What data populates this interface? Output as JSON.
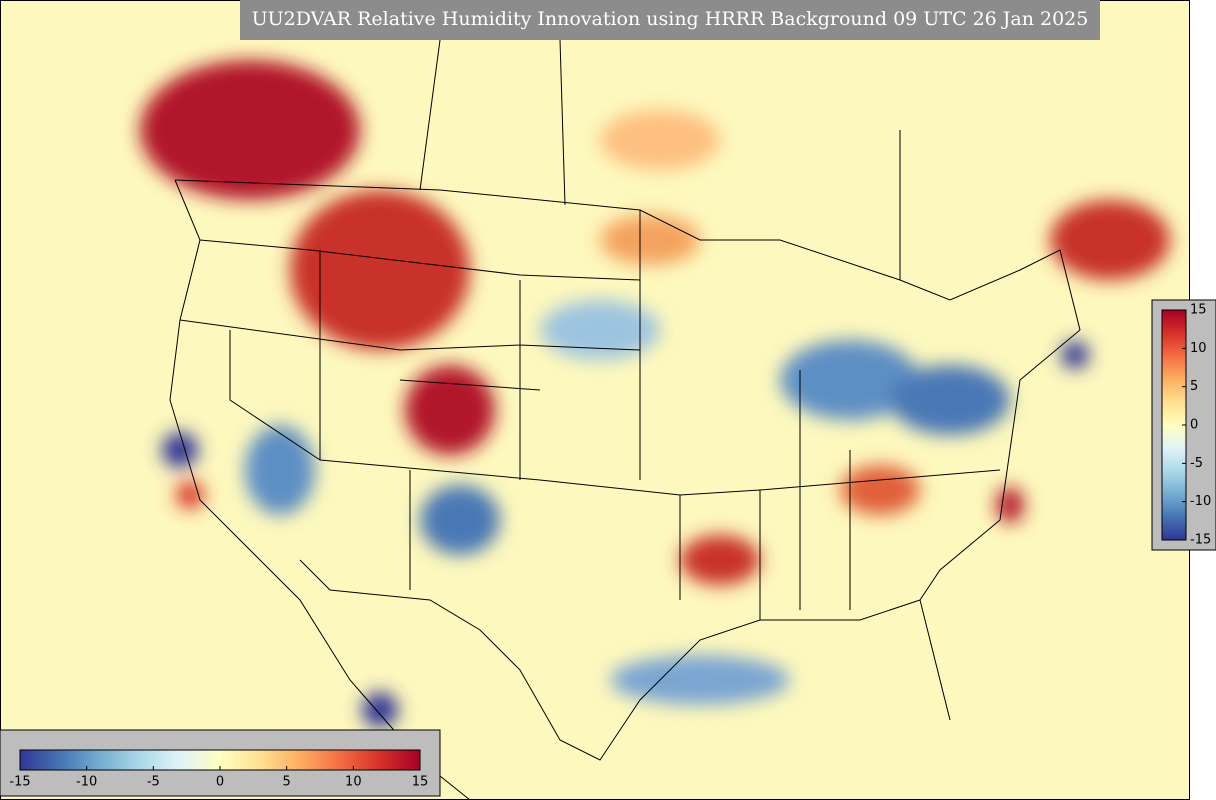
{
  "title": "UU2DVAR Relative Humidity Innovation using HRRR Background 09 UTC 26 Jan 2025",
  "colorbar": {
    "range": [
      -15,
      15
    ],
    "ticks": [
      -15,
      -10,
      -5,
      0,
      5,
      10,
      15
    ],
    "colormap": [
      "#313695",
      "#4575b4",
      "#74add1",
      "#abd9e9",
      "#e0f3f8",
      "#ffffbf",
      "#fee090",
      "#fdae61",
      "#f46d43",
      "#d73027",
      "#a50026"
    ]
  }
}
